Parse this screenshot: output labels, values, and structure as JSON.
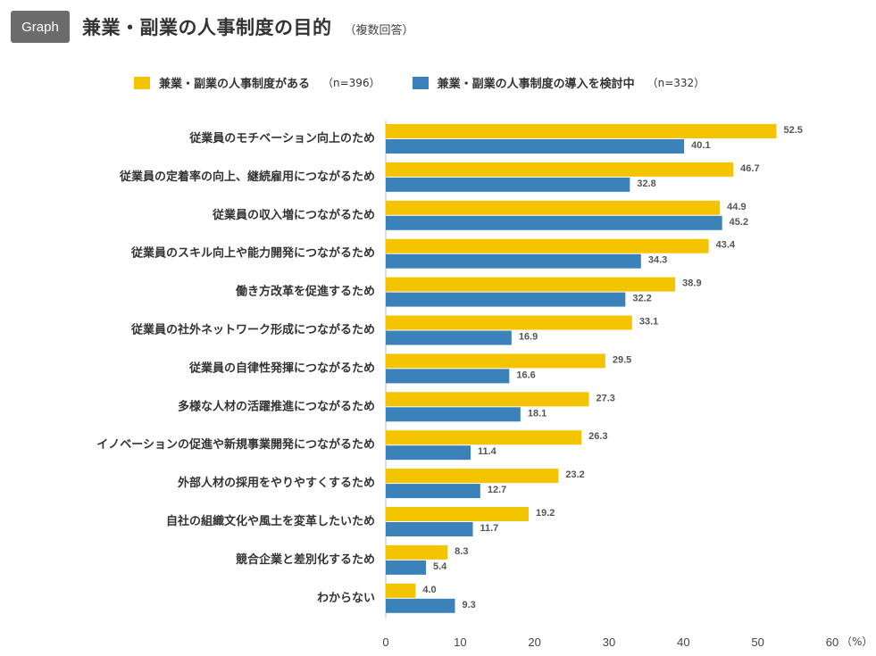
{
  "header": {
    "badge": "Graph",
    "title": "兼業・副業の人事制度の目的",
    "subtitle": "（複数回答）"
  },
  "legend": [
    {
      "label": "兼業・副業の人事制度がある",
      "n": "（n=396）",
      "color": "#f5c400"
    },
    {
      "label": "兼業・副業の人事制度の導入を検討中",
      "n": "（n=332）",
      "color": "#3b82bb"
    }
  ],
  "chart_data": {
    "type": "bar",
    "orientation": "horizontal",
    "title": "兼業・副業の人事制度の目的",
    "xlim": [
      0,
      60
    ],
    "xticks": [
      0,
      10,
      20,
      30,
      40,
      50,
      60
    ],
    "unit": "（%）",
    "grid": false,
    "legend_position": "top",
    "categories": [
      "従業員のモチベーション向上のため",
      "従業員の定着率の向上、継続雇用につながるため",
      "従業員の収入増につながるため",
      "従業員のスキル向上や能力開発につながるため",
      "働き方改革を促進するため",
      "従業員の社外ネットワーク形成につながるため",
      "従業員の自律性発揮につながるため",
      "多様な人材の活躍推進につながるため",
      "イノベーションの促進や新規事業開発につながるため",
      "外部人材の採用をやりやすくするため",
      "自社の組織文化や風土を変革したいため",
      "競合企業と差別化するため",
      "わからない"
    ],
    "series": [
      {
        "name": "兼業・副業の人事制度がある",
        "color": "#f5c400",
        "values": [
          52.5,
          46.7,
          44.9,
          43.4,
          38.9,
          33.1,
          29.5,
          27.3,
          26.3,
          23.2,
          19.2,
          8.3,
          4.0
        ]
      },
      {
        "name": "兼業・副業の人事制度の導入を検討中",
        "color": "#3b82bb",
        "values": [
          40.1,
          32.8,
          45.2,
          34.3,
          32.2,
          16.9,
          16.6,
          18.1,
          11.4,
          12.7,
          11.7,
          5.4,
          9.3
        ]
      }
    ]
  }
}
